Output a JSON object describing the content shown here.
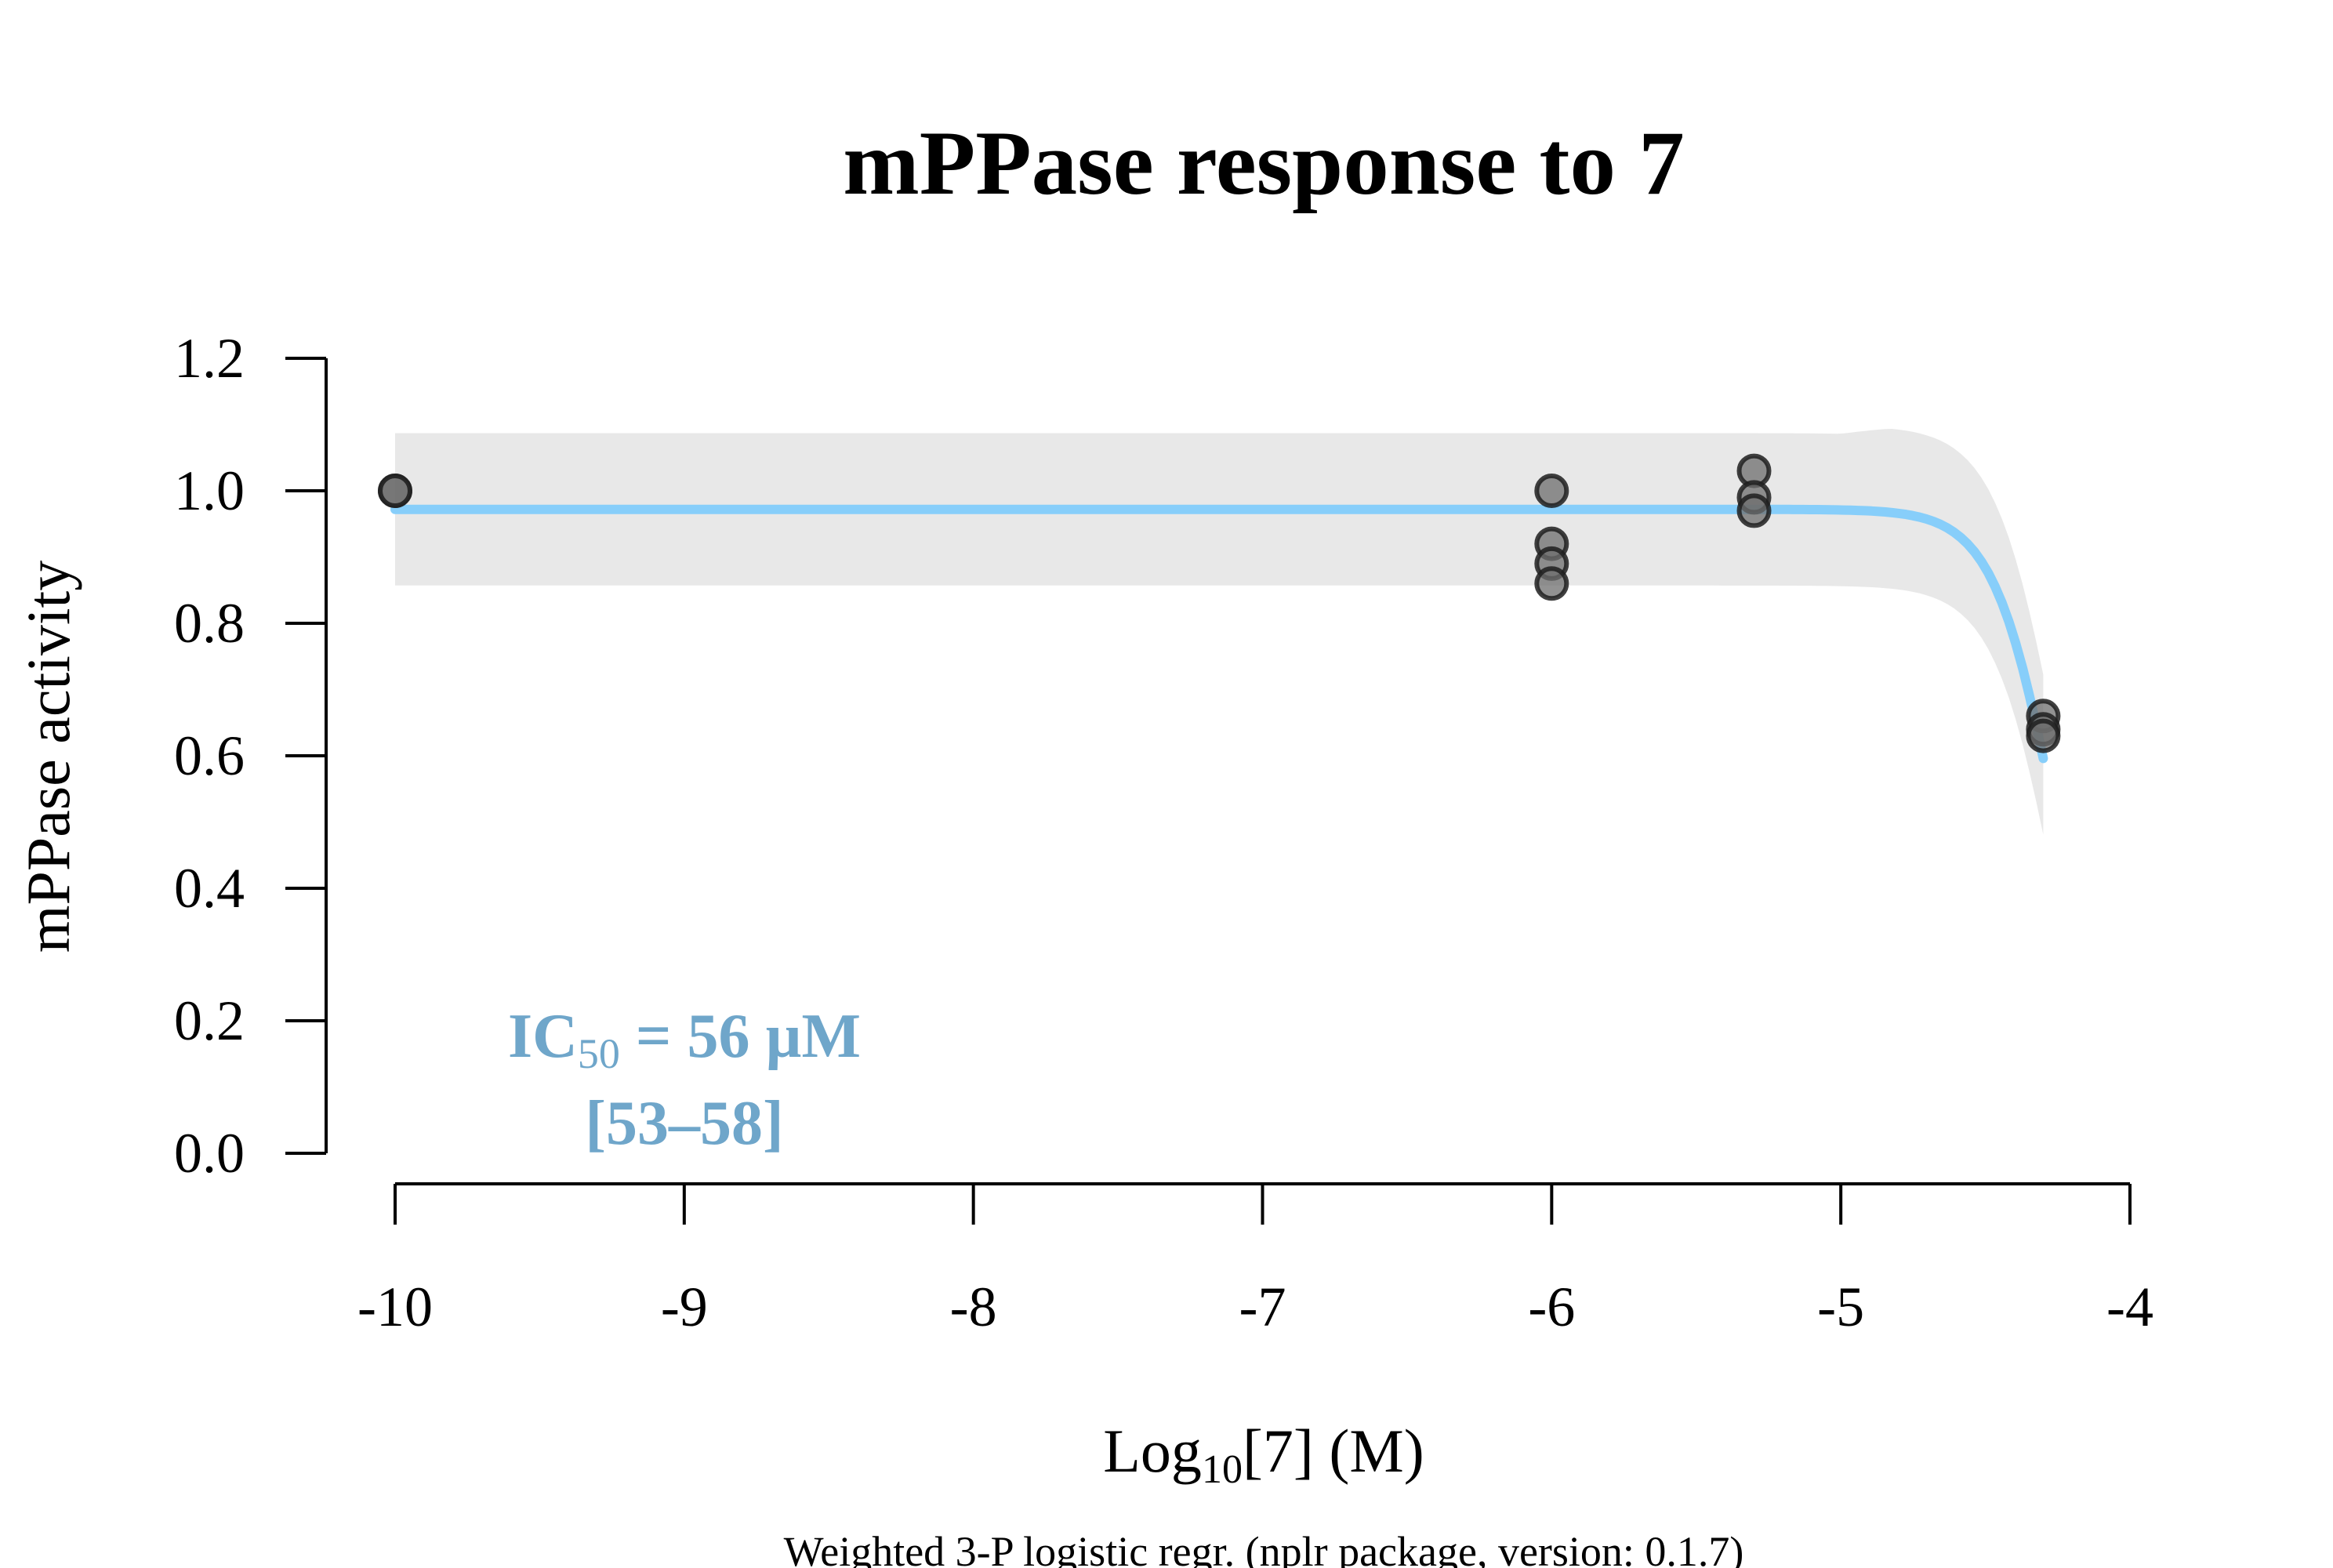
{
  "chart_data": {
    "type": "scatter",
    "title": "mPPase response to 7",
    "xlabel": {
      "prefix": "Log",
      "sub": "10",
      "suffix": "[7] (M)"
    },
    "ylabel": "mPPase activity",
    "footnote": "Weighted 3-P logistic regr. (nplr package, version: 0.1.7)",
    "xlim": [
      -10,
      -4
    ],
    "ylim": [
      0,
      1.2
    ],
    "x_ticks": [
      "-10",
      "-9",
      "-8",
      "-7",
      "-6",
      "-5",
      "-4"
    ],
    "y_ticks": [
      "0.0",
      "0.2",
      "0.4",
      "0.6",
      "0.8",
      "1.0",
      "1.2"
    ],
    "grid": false,
    "points": [
      {
        "x": -10,
        "y": 1.0
      },
      {
        "x": -10,
        "y": 1.0
      },
      {
        "x": -6,
        "y": 1.0
      },
      {
        "x": -6,
        "y": 0.92
      },
      {
        "x": -6,
        "y": 0.89
      },
      {
        "x": -6,
        "y": 0.86
      },
      {
        "x": -5.3,
        "y": 1.03
      },
      {
        "x": -5.3,
        "y": 0.99
      },
      {
        "x": -5.3,
        "y": 0.97
      },
      {
        "x": -4.3,
        "y": 0.66
      },
      {
        "x": -4.3,
        "y": 0.64
      },
      {
        "x": -4.3,
        "y": 0.63
      }
    ],
    "fit": {
      "model": "3-P logistic",
      "top": 0.972,
      "bottom": 0,
      "log_ic50": -4.25,
      "hill_slope": 4.0,
      "x_range": [
        -10,
        -4.3
      ],
      "confidence_band": {
        "upper_offset": 0.115,
        "lower_offset": 0.115
      },
      "color": "#87cefa"
    },
    "annotation": {
      "ic50_prefix": "IC",
      "ic50_sub": "50",
      "ic50_value": " = 56 µM",
      "ic50_interval": "[53–58]",
      "color": "#6fa6ca"
    }
  }
}
